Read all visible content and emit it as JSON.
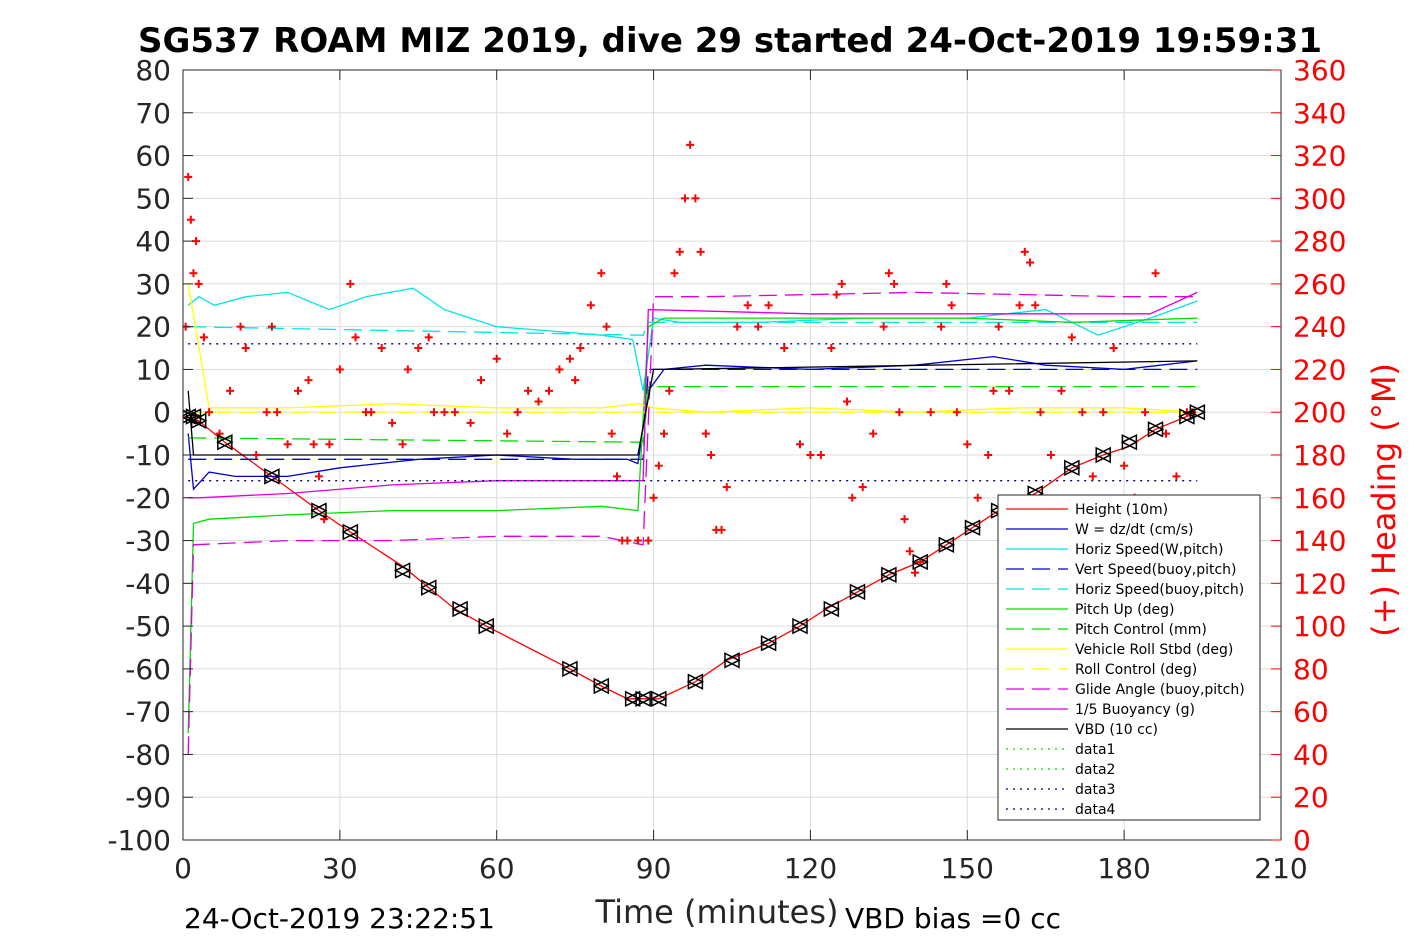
{
  "chart_data": {
    "type": "line",
    "title": "SG537 ROAM MIZ 2019, dive 29 started 24-Oct-2019 19:59:31",
    "xlabel": "Time (minutes)",
    "ylabel": "",
    "y2label": "(+) Heading (°M)",
    "xlim": [
      0,
      210
    ],
    "ylim": [
      -100,
      80
    ],
    "y2lim": [
      0,
      360
    ],
    "xticks": [
      0,
      30,
      60,
      90,
      120,
      150,
      180,
      210
    ],
    "yticks": [
      -100,
      -90,
      -80,
      -70,
      -60,
      -50,
      -40,
      -30,
      -20,
      -10,
      0,
      10,
      20,
      30,
      40,
      50,
      60,
      70,
      80
    ],
    "y2ticks": [
      0,
      20,
      40,
      60,
      80,
      100,
      120,
      140,
      160,
      180,
      200,
      220,
      240,
      260,
      280,
      300,
      320,
      340,
      360
    ],
    "grid": true,
    "legend_position": "bottom-right",
    "footer_left": "24-Oct-2019 23:22:51",
    "footer_right": "VBD bias =0 cc",
    "series": [
      {
        "name": "Height (10m)",
        "color": "#ff0000",
        "style": "solid",
        "x": [
          0,
          3,
          8,
          17,
          26,
          32,
          42,
          47,
          52,
          58,
          74,
          80,
          85,
          88,
          91,
          98,
          104,
          112,
          118,
          123,
          129,
          135,
          141,
          146,
          151,
          156,
          163,
          170,
          176,
          181,
          186,
          192,
          194
        ],
        "values": [
          -1,
          -2,
          -7,
          -15,
          -23,
          -28,
          -36,
          -41,
          -46,
          -50,
          -60,
          -64,
          -67,
          -67,
          -67,
          -63,
          -58,
          -54,
          -50,
          -46,
          -42,
          -38,
          -35,
          -31,
          -27,
          -23,
          -19,
          -13,
          -10,
          -8,
          -4,
          -1,
          0
        ]
      },
      {
        "name": "W = dz/dt (cm/s)",
        "color": "#0000cc",
        "style": "solid",
        "x": [
          1,
          2,
          5,
          10,
          20,
          30,
          45,
          60,
          75,
          85,
          87,
          89,
          92,
          100,
          120,
          140,
          155,
          165,
          180,
          194
        ],
        "values": [
          -5,
          -18,
          -14,
          -15,
          -15,
          -13,
          -11,
          -10,
          -11,
          -11,
          -12,
          5,
          10,
          11,
          10,
          11,
          13,
          11,
          10,
          12
        ]
      },
      {
        "name": "Horiz Speed(W,pitch)",
        "color": "#00e5e5",
        "style": "solid",
        "x": [
          1,
          3,
          6,
          12,
          20,
          28,
          35,
          44,
          50,
          60,
          70,
          80,
          86,
          88,
          90,
          95,
          110,
          130,
          150,
          165,
          175,
          185,
          194
        ],
        "values": [
          25,
          27,
          25,
          27,
          28,
          24,
          27,
          29,
          24,
          20,
          19,
          18,
          17,
          5,
          22,
          21,
          21,
          22,
          22,
          24,
          18,
          22,
          26
        ]
      },
      {
        "name": "Vert Speed(buoy,pitch)",
        "color": "#0000cc",
        "style": "dashed",
        "x": [
          1,
          88,
          89,
          194
        ],
        "values": [
          -11,
          -11,
          10,
          10
        ]
      },
      {
        "name": "Horiz Speed(buoy,pitch)",
        "color": "#00e5e5",
        "style": "dashed",
        "x": [
          1,
          88,
          89,
          194
        ],
        "values": [
          20,
          18,
          21,
          21
        ]
      },
      {
        "name": "Pitch Up (deg)",
        "color": "#00dd00",
        "style": "solid",
        "x": [
          1,
          2,
          5,
          20,
          40,
          60,
          80,
          87,
          89,
          92,
          110,
          130,
          150,
          170,
          194
        ],
        "values": [
          -75,
          -26,
          -25,
          -24,
          -23,
          -23,
          -22,
          -23,
          20,
          22,
          22,
          22,
          22,
          21,
          22
        ]
      },
      {
        "name": "Pitch Control (mm)",
        "color": "#00dd00",
        "style": "dashed",
        "x": [
          1,
          88,
          89,
          194
        ],
        "values": [
          -6,
          -7,
          6,
          6
        ]
      },
      {
        "name": "Vehicle Roll Stbd (deg)",
        "color": "#ffff00",
        "style": "solid",
        "x": [
          1,
          5,
          20,
          40,
          60,
          80,
          87,
          90,
          100,
          120,
          140,
          160,
          180,
          194
        ],
        "values": [
          30,
          1,
          1,
          2,
          1,
          1,
          2,
          1,
          0,
          1,
          0,
          1,
          1,
          0
        ]
      },
      {
        "name": "Roll Control (deg)",
        "color": "#ffff00",
        "style": "dashed",
        "x": [
          1,
          194
        ],
        "values": [
          0,
          0
        ]
      },
      {
        "name": "Glide Angle (buoy,pitch)",
        "color": "#dd00dd",
        "style": "dashed",
        "x": [
          1,
          2,
          20,
          40,
          60,
          80,
          88,
          90,
          100,
          140,
          180,
          194
        ],
        "values": [
          -80,
          -31,
          -30,
          -30,
          -29,
          -29,
          -31,
          27,
          27,
          28,
          27,
          27
        ]
      },
      {
        "name": "1/5 Buoyancy (g)",
        "color": "#dd00dd",
        "style": "solid",
        "x": [
          1,
          3,
          20,
          40,
          60,
          88,
          89,
          120,
          160,
          185,
          194
        ],
        "values": [
          -20,
          -20,
          -19,
          -17,
          -16,
          -16,
          24,
          23,
          23,
          23,
          28
        ]
      },
      {
        "name": "VBD (10 cc)",
        "color": "#000000",
        "style": "solid",
        "x": [
          1,
          2,
          87,
          90,
          92,
          194
        ],
        "values": [
          5,
          -10,
          -10,
          10,
          10,
          12
        ]
      },
      {
        "name": "data1",
        "color": "#00dd00",
        "style": "dotted",
        "x": [],
        "values": []
      },
      {
        "name": "data2",
        "color": "#00dd00",
        "style": "dotted",
        "x": [],
        "values": []
      },
      {
        "name": "data3",
        "color": "#000080",
        "style": "dotted",
        "x": [
          1,
          194
        ],
        "values": [
          16,
          16
        ]
      },
      {
        "name": "data4",
        "color": "#000080",
        "style": "dotted",
        "x": [
          1,
          194
        ],
        "values": [
          -16,
          -16
        ]
      }
    ],
    "heading": {
      "axis": "right",
      "marker": "+",
      "color": "#ff0000",
      "x": [
        0.5,
        1,
        1.5,
        2,
        2.5,
        3,
        4,
        5,
        7,
        9,
        11,
        12,
        14,
        16,
        17,
        18,
        20,
        22,
        24,
        25,
        26,
        27,
        28,
        30,
        32,
        33,
        35,
        36,
        38,
        40,
        42,
        43,
        45,
        47,
        48,
        50,
        52,
        55,
        57,
        60,
        62,
        64,
        66,
        68,
        70,
        72,
        74,
        75,
        76,
        78,
        80,
        81,
        82,
        83,
        84,
        85,
        87,
        89,
        90,
        91,
        92,
        93,
        94,
        95,
        96,
        97,
        98,
        99,
        100,
        101,
        102,
        103,
        104,
        106,
        108,
        110,
        112,
        115,
        118,
        120,
        122,
        124,
        125,
        126,
        127,
        128,
        130,
        132,
        134,
        135,
        136,
        137,
        138,
        139,
        140,
        141,
        143,
        145,
        146,
        147,
        148,
        150,
        152,
        154,
        155,
        156,
        158,
        160,
        161,
        162,
        163,
        164,
        166,
        168,
        170,
        172,
        174,
        176,
        178,
        180,
        182,
        184,
        186,
        188,
        190,
        192,
        193
      ],
      "values": [
        240,
        310,
        290,
        265,
        280,
        260,
        235,
        200,
        190,
        210,
        240,
        230,
        180,
        200,
        240,
        200,
        185,
        210,
        215,
        185,
        170,
        150,
        185,
        220,
        260,
        235,
        200,
        200,
        230,
        195,
        185,
        220,
        230,
        235,
        200,
        200,
        200,
        195,
        215,
        225,
        190,
        200,
        210,
        205,
        210,
        220,
        225,
        215,
        230,
        250,
        265,
        240,
        190,
        170,
        140,
        140,
        140,
        140,
        160,
        175,
        190,
        210,
        265,
        275,
        300,
        325,
        300,
        275,
        190,
        180,
        145,
        145,
        165,
        240,
        250,
        240,
        250,
        230,
        185,
        180,
        180,
        230,
        255,
        260,
        205,
        160,
        165,
        190,
        240,
        265,
        260,
        200,
        150,
        135,
        125,
        130,
        200,
        240,
        260,
        250,
        200,
        185,
        160,
        180,
        210,
        240,
        210,
        250,
        275,
        270,
        250,
        200,
        180,
        210,
        235,
        200,
        170,
        200,
        230,
        175,
        160,
        200,
        265,
        190,
        170,
        200,
        200
      ]
    },
    "depth_markers": {
      "marker": "triangle",
      "color": "#000000",
      "x": [
        1,
        2,
        3,
        8,
        17,
        26,
        32,
        42,
        47,
        53,
        58,
        74,
        80,
        86,
        88,
        91,
        98,
        105,
        112,
        118,
        124,
        129,
        135,
        141,
        146,
        151,
        156,
        163,
        170,
        176,
        181,
        186,
        192,
        194
      ],
      "values": [
        -1,
        -1,
        -2,
        -7,
        -15,
        -23,
        -28,
        -37,
        -41,
        -46,
        -50,
        -60,
        -64,
        -67,
        -67,
        -67,
        -63,
        -58,
        -54,
        -50,
        -46,
        -42,
        -38,
        -35,
        -31,
        -27,
        -23,
        -19,
        -13,
        -10,
        -7,
        -4,
        -1,
        0
      ]
    }
  }
}
